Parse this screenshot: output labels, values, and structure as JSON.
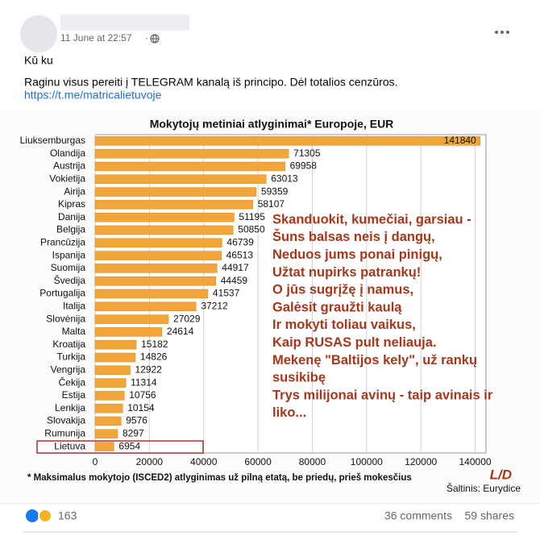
{
  "post": {
    "date": "11 June at 22:57",
    "lines": [
      "Kū ku",
      "Raginu visus pereiti į TELEGRAM kanalą iš principo. Dėl totalios cenzūros."
    ],
    "link": "https://t.me/matricalietuvoje"
  },
  "chart_data": {
    "type": "bar",
    "orientation": "horizontal",
    "title": "Mokytojų metiniai atlyginimai* Europoje, EUR",
    "categories": [
      "Liuksemburgas",
      "Olandija",
      "Austrija",
      "Vokietija",
      "Airija",
      "Kipras",
      "Danija",
      "Belgija",
      "Prancūzija",
      "Ispanija",
      "Suomija",
      "Švedija",
      "Portugalija",
      "Italija",
      "Slovėnija",
      "Malta",
      "Kroatija",
      "Turkija",
      "Vengrija",
      "Čekija",
      "Estija",
      "Lenkija",
      "Slovakija",
      "Rumunija",
      "Lietuva"
    ],
    "values": [
      141840,
      71305,
      69958,
      63013,
      59359,
      58107,
      51195,
      50850,
      46739,
      46513,
      44917,
      44459,
      41537,
      37212,
      27029,
      24614,
      15182,
      14826,
      12922,
      11314,
      10756,
      10154,
      9576,
      8297,
      6954
    ],
    "color": "#f2a53a",
    "xlim": [
      0,
      144000
    ],
    "xticks": [
      0,
      20000,
      40000,
      60000,
      80000,
      100000,
      120000,
      140000
    ],
    "grid": true,
    "annotations": [
      "Skanduokit, kumečiai, garsiau -",
      "Šuns balsas neis į dangų,",
      "Neduos jums ponai pinigų,",
      "Užtat nupirks patrankų!",
      "O jūs sugrįžę į namus,",
      "Galėsit graužti kaulą",
      "Ir mokyti toliau vaikus,",
      "Kaip RUSAS pult neliauja.",
      "Mekenę \"Baltijos kely\", už rankų",
      "susikibę",
      "Trys milijonai avinų - taip avinais ir",
      "liko..."
    ],
    "footnote": "* Maksimalus mokytojo (ISCED2) atlyginimas už pilną etatą, be priedų, prieš mokesčius",
    "logo": "L/D",
    "source": "Šaltinis: Eurydice"
  },
  "footer": {
    "reactions": 163,
    "comments": "36 comments",
    "shares": "59 shares"
  }
}
